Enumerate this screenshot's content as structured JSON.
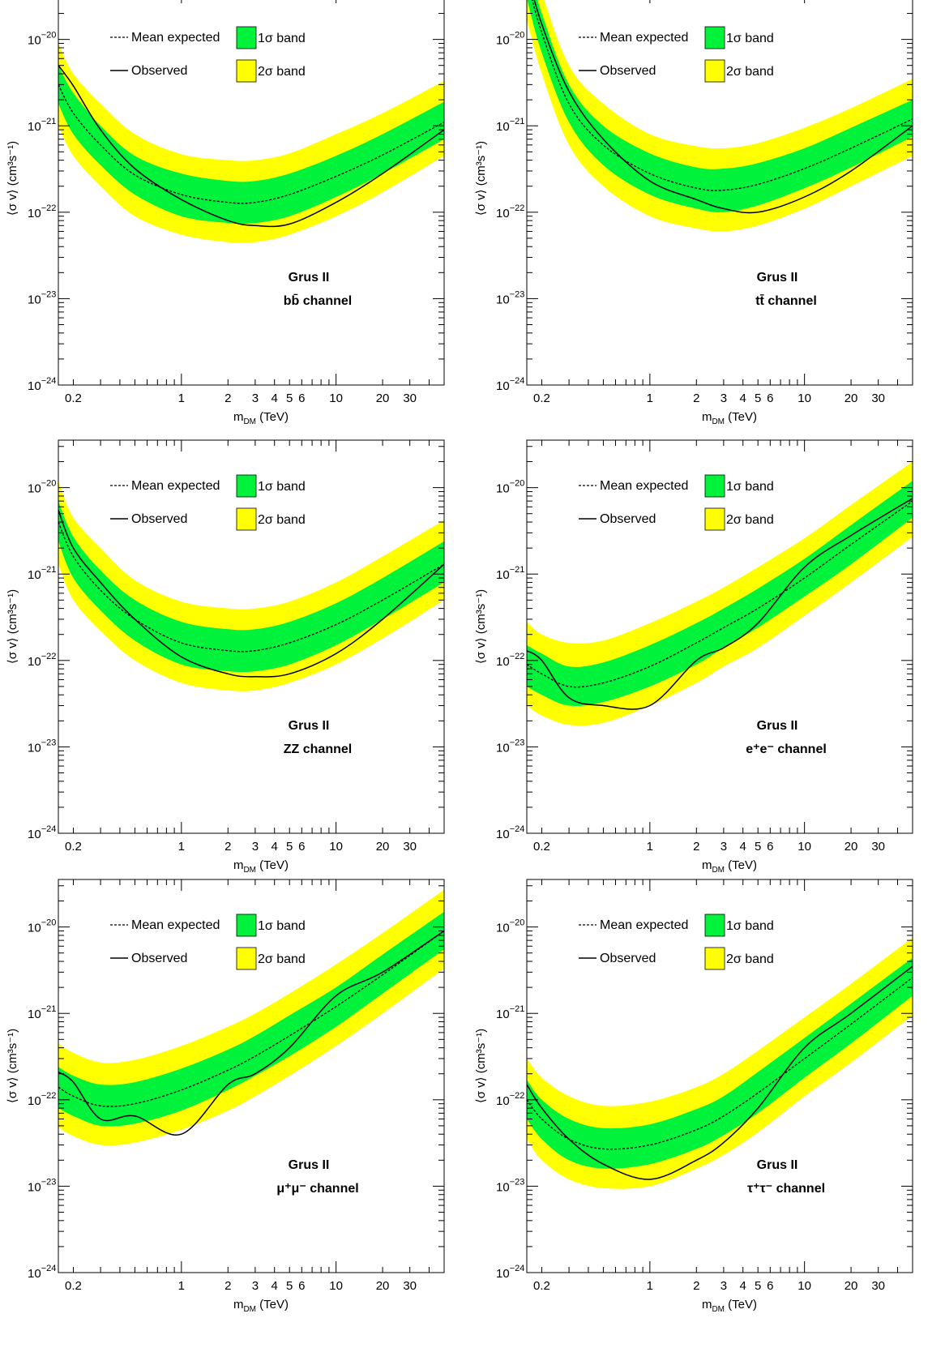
{
  "legend": {
    "mean_expected": "Mean expected",
    "observed": "Observed",
    "band1": "1σ band",
    "band2": "2σ band",
    "band1_color": "#00f23a",
    "band2_color": "#ffff00"
  },
  "axes": {
    "xlabel_main": "m",
    "xlabel_sub": "DM",
    "xlabel_unit": " (TeV)",
    "ylabel": "⟨σ v⟩ (cm³s⁻¹)",
    "x_ticks": [
      {
        "v": 0.2,
        "label": "0.2"
      },
      {
        "v": 1,
        "label": "1"
      },
      {
        "v": 2,
        "label": "2"
      },
      {
        "v": 3,
        "label": "3"
      },
      {
        "v": 4,
        "label": "4"
      },
      {
        "v": 5,
        "label": "5"
      },
      {
        "v": 6,
        "label": "6"
      },
      {
        "v": 10,
        "label": "10"
      },
      {
        "v": 20,
        "label": "20"
      },
      {
        "v": 30,
        "label": "30"
      }
    ],
    "y_ticks": [
      {
        "exp": -24,
        "label": "10",
        "sup": "−24"
      },
      {
        "exp": -23,
        "label": "10",
        "sup": "−23"
      },
      {
        "exp": -22,
        "label": "10",
        "sup": "−22"
      },
      {
        "exp": -21,
        "label": "10",
        "sup": "−21"
      },
      {
        "exp": -20,
        "label": "10",
        "sup": "−20"
      }
    ]
  },
  "chart_data": [
    {
      "type": "line",
      "target": "Grus II",
      "channel": "bb̄ channel",
      "x_log": true,
      "y_log": true,
      "xlim": [
        0.16,
        50
      ],
      "ylim_exp": [
        -24,
        -19.45
      ],
      "x": [
        0.16,
        0.2,
        0.3,
        0.5,
        1,
        2,
        3,
        5,
        10,
        20,
        50
      ],
      "expected": [
        3e-21,
        1.4e-21,
        6e-22,
        2.7e-22,
        1.6e-22,
        1.3e-22,
        1.3e-22,
        1.6e-22,
        2.6e-22,
        4.6e-22,
        1.1e-21
      ],
      "band1_low": [
        1.8e-21,
        8e-22,
        3.5e-22,
        1.6e-22,
        9e-23,
        7.5e-23,
        7.5e-23,
        9e-23,
        1.5e-22,
        2.8e-22,
        7e-22
      ],
      "band1_high": [
        5e-21,
        2.4e-21,
        1e-21,
        4.5e-22,
        2.8e-22,
        2.3e-22,
        2.3e-22,
        2.8e-22,
        4.5e-22,
        8e-22,
        1.9e-21
      ],
      "band2_low": [
        1e-21,
        4.5e-22,
        2e-22,
        9e-23,
        5.5e-23,
        4.5e-23,
        4.5e-23,
        5.5e-23,
        9e-23,
        1.7e-22,
        4.5e-22
      ],
      "band2_high": [
        9e-21,
        4e-21,
        1.8e-21,
        8e-22,
        4.7e-22,
        4e-22,
        4e-22,
        4.8e-22,
        8e-22,
        1.4e-21,
        3.3e-21
      ],
      "observed": [
        5e-21,
        2.9e-21,
        9e-22,
        3.2e-22,
        1.4e-22,
        8e-23,
        7e-23,
        7.3e-23,
        1.3e-22,
        2.8e-22,
        9e-22
      ]
    },
    {
      "type": "line",
      "target": "Grus II",
      "channel": "tt̄ channel",
      "x_log": true,
      "y_log": true,
      "xlim": [
        0.16,
        50
      ],
      "ylim_exp": [
        -24,
        -19.45
      ],
      "x": [
        0.16,
        0.2,
        0.3,
        0.5,
        1,
        2,
        3,
        5,
        10,
        20,
        50
      ],
      "expected": [
        5e-20,
        1.2e-20,
        1.8e-21,
        6e-22,
        2.8e-22,
        1.9e-22,
        1.8e-22,
        2.1e-22,
        3.2e-22,
        5.5e-22,
        1.2e-21
      ],
      "band1_low": [
        3e-20,
        7e-21,
        1.1e-21,
        3.5e-22,
        1.6e-22,
        1.1e-22,
        1e-22,
        1.2e-22,
        1.9e-22,
        3.3e-22,
        7.5e-22
      ],
      "band1_high": [
        8e-20,
        2e-20,
        3e-21,
        1e-21,
        4.8e-22,
        3.3e-22,
        3.2e-22,
        3.7e-22,
        5.5e-22,
        9.5e-22,
        2e-21
      ],
      "band2_low": [
        1.7e-20,
        4e-21,
        6e-22,
        2e-22,
        9e-23,
        6.5e-23,
        6e-23,
        7e-23,
        1.1e-22,
        2e-22,
        4.5e-22
      ],
      "band2_high": [
        1.4e-19,
        3.5e-20,
        5e-21,
        1.8e-21,
        8e-22,
        5.8e-22,
        5.5e-22,
        6.3e-22,
        9.5e-22,
        1.6e-21,
        3.5e-21
      ],
      "observed": [
        6e-20,
        1.5e-20,
        2.5e-21,
        7e-22,
        2.3e-22,
        1.4e-22,
        1.1e-22,
        1e-22,
        1.5e-22,
        3e-22,
        1e-21
      ]
    },
    {
      "type": "line",
      "target": "Grus II",
      "channel": "ZZ channel",
      "x_log": true,
      "y_log": true,
      "xlim": [
        0.16,
        50
      ],
      "ylim_exp": [
        -24,
        -19.45
      ],
      "x": [
        0.16,
        0.2,
        0.3,
        0.5,
        1,
        2,
        3,
        5,
        10,
        20,
        50
      ],
      "expected": [
        4e-21,
        1.6e-21,
        6.5e-22,
        3e-22,
        1.6e-22,
        1.3e-22,
        1.3e-22,
        1.6e-22,
        2.6e-22,
        5e-22,
        1.3e-21
      ],
      "band1_low": [
        2.4e-21,
        9e-22,
        3.8e-22,
        1.7e-22,
        9e-23,
        7.5e-23,
        7.5e-23,
        9e-23,
        1.5e-22,
        3e-22,
        8e-22
      ],
      "band1_high": [
        7e-21,
        2.7e-21,
        1.1e-21,
        5e-22,
        2.8e-22,
        2.3e-22,
        2.3e-22,
        2.8e-22,
        4.6e-22,
        9e-22,
        2.4e-21
      ],
      "band2_low": [
        1.3e-21,
        5e-22,
        2.2e-22,
        1e-22,
        5.5e-23,
        4.5e-23,
        4.5e-23,
        5.5e-23,
        9e-23,
        1.8e-22,
        5e-22
      ],
      "band2_high": [
        1.2e-20,
        4.5e-21,
        2e-21,
        8.5e-22,
        4.8e-22,
        4e-22,
        4e-22,
        4.8e-22,
        8e-22,
        1.6e-21,
        4.2e-21
      ],
      "observed": [
        5.5e-21,
        2e-21,
        8e-22,
        3e-22,
        1.1e-22,
        7e-23,
        6.5e-23,
        7e-23,
        1.2e-22,
        3e-22,
        1.3e-21
      ]
    },
    {
      "type": "line",
      "target": "Grus II",
      "channel": "e⁺e⁻ channel",
      "x_log": true,
      "y_log": true,
      "xlim": [
        0.16,
        50
      ],
      "ylim_exp": [
        -24,
        -19.45
      ],
      "x": [
        0.16,
        0.2,
        0.3,
        0.5,
        1,
        2,
        3,
        5,
        10,
        20,
        50
      ],
      "expected": [
        9e-23,
        7e-23,
        5e-23,
        5.5e-23,
        8.5e-23,
        1.6e-22,
        2.4e-22,
        4e-22,
        9e-22,
        2.2e-21,
        7e-21
      ],
      "band1_low": [
        5e-23,
        4e-23,
        3e-23,
        3.3e-23,
        5e-23,
        9e-23,
        1.4e-22,
        2.4e-22,
        5.5e-22,
        1.3e-21,
        4.5e-21
      ],
      "band1_high": [
        1.5e-22,
        1.2e-22,
        8.5e-23,
        9.5e-23,
        1.5e-22,
        2.7e-22,
        4e-22,
        6.8e-22,
        1.5e-21,
        3.7e-21,
        1.2e-20
      ],
      "band2_low": [
        3e-23,
        2.3e-23,
        1.8e-23,
        1.9e-23,
        3e-23,
        5.5e-23,
        8.5e-23,
        1.4e-22,
        3.3e-22,
        8e-22,
        2.7e-21
      ],
      "band2_high": [
        2.8e-22,
        2e-22,
        1.6e-22,
        1.7e-22,
        2.7e-22,
        4.8e-22,
        7e-22,
        1.2e-21,
        2.6e-21,
        6.3e-21,
        2e-20
      ],
      "observed": [
        1.3e-22,
        1e-22,
        3.7e-23,
        3e-23,
        3e-23,
        1e-22,
        1.4e-22,
        2.7e-22,
        1.2e-21,
        2.8e-21,
        7.5e-21
      ]
    },
    {
      "type": "line",
      "target": "Grus II",
      "channel": "μ⁺μ⁻ channel",
      "x_log": true,
      "y_log": true,
      "xlim": [
        0.16,
        50
      ],
      "ylim_exp": [
        -24,
        -19.45
      ],
      "x": [
        0.16,
        0.2,
        0.3,
        0.5,
        1,
        2,
        3,
        5,
        10,
        20,
        50
      ],
      "expected": [
        1.4e-22,
        1.1e-22,
        8.5e-23,
        9e-23,
        1.3e-22,
        2.2e-22,
        3.2e-22,
        5.5e-22,
        1.2e-21,
        2.8e-21,
        9e-21
      ],
      "band1_low": [
        8e-23,
        6.5e-23,
        5e-23,
        5.3e-23,
        7.5e-23,
        1.3e-22,
        1.9e-22,
        3.2e-22,
        7e-22,
        1.7e-21,
        5.5e-21
      ],
      "band1_high": [
        2.4e-22,
        1.9e-22,
        1.5e-22,
        1.6e-22,
        2.3e-22,
        3.8e-22,
        5.5e-22,
        9.5e-22,
        2e-21,
        4.8e-21,
        1.5e-20
      ],
      "band2_low": [
        4.8e-23,
        3.8e-23,
        3e-23,
        3.2e-23,
        4.5e-23,
        7.5e-23,
        1.1e-22,
        1.9e-22,
        4.2e-22,
        1e-21,
        3.3e-21
      ],
      "band2_high": [
        4.5e-22,
        3.5e-22,
        2.7e-22,
        2.9e-22,
        4.2e-22,
        7e-22,
        1e-21,
        1.7e-21,
        3.7e-21,
        8.5e-21,
        2.7e-20
      ],
      "observed": [
        2.1e-22,
        1.6e-22,
        6e-23,
        6.5e-23,
        4e-23,
        1.5e-22,
        2e-22,
        4e-22,
        1.6e-21,
        3e-21,
        9e-21
      ]
    },
    {
      "type": "line",
      "target": "Grus II",
      "channel": "τ⁺τ⁻ channel",
      "x_log": true,
      "y_log": true,
      "xlim": [
        0.16,
        50
      ],
      "ylim_exp": [
        -24,
        -19.45
      ],
      "x": [
        0.16,
        0.2,
        0.3,
        0.5,
        1,
        2,
        3,
        5,
        10,
        20,
        50
      ],
      "expected": [
        1e-22,
        6e-23,
        3.5e-23,
        2.7e-23,
        3e-23,
        4.5e-23,
        6.5e-23,
        1.2e-22,
        3e-22,
        7.5e-22,
        2.6e-21
      ],
      "band1_low": [
        6e-23,
        3.5e-23,
        2e-23,
        1.6e-23,
        1.8e-23,
        2.7e-23,
        3.9e-23,
        7e-23,
        1.8e-22,
        4.5e-22,
        1.6e-21
      ],
      "band1_high": [
        1.7e-22,
        1e-22,
        6e-23,
        4.7e-23,
        5.2e-23,
        7.8e-23,
        1.1e-22,
        2.1e-22,
        5.2e-22,
        1.3e-21,
        4.4e-21
      ],
      "band2_low": [
        3.5e-23,
        2e-23,
        1.2e-23,
        9.5e-24,
        1e-23,
        1.6e-23,
        2.3e-23,
        4.2e-23,
        1.1e-22,
        2.7e-22,
        9.5e-22
      ],
      "band2_high": [
        3e-22,
        1.8e-22,
        1.1e-22,
        8.5e-23,
        9.5e-23,
        1.4e-22,
        2e-22,
        3.7e-22,
        9e-22,
        2.2e-21,
        7.5e-21
      ],
      "observed": [
        1.5e-22,
        8e-23,
        3.5e-23,
        1.8e-23,
        1.2e-23,
        2e-23,
        3.2e-23,
        8e-23,
        4e-22,
        1e-21,
        3.5e-21
      ]
    }
  ]
}
